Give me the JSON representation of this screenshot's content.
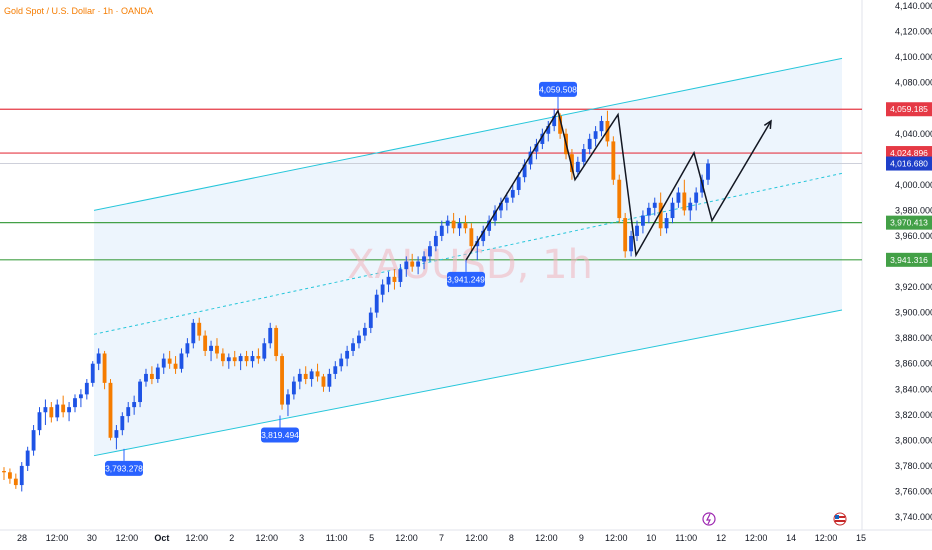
{
  "header": {
    "symbol_title": "Gold Spot / U.S. Dollar · 1h · OANDA",
    "watermark": "XAUUSD, 1h"
  },
  "colors": {
    "bull": "#1e53e5",
    "bear": "#f57c00",
    "channel": "#26c6da",
    "resistance": "#e53945",
    "support": "#43a047",
    "current": "#1e3fc9",
    "callout": "#2962ff",
    "channel_fill": "#e9f2fd"
  },
  "chart_data": {
    "type": "candlestick",
    "symbol": "XAUUSD",
    "timeframe": "1h",
    "broker": "OANDA",
    "ylim": [
      3740,
      4140
    ],
    "y_ticks": [
      3740,
      3760,
      3780,
      3800,
      3820,
      3840,
      3860,
      3880,
      3900,
      3920,
      3940,
      3960,
      3980,
      4000,
      4020,
      4040,
      4060,
      4080,
      4100,
      4120,
      4140
    ],
    "y_tick_labels": [
      "3,740.000",
      "3,760.000",
      "3,780.000",
      "3,800.000",
      "3,820.000",
      "3,840.000",
      "3,860.000",
      "3,880.000",
      "3,900.000",
      "3,920.000",
      "3,940.000",
      "3,960.000",
      "3,980.000",
      "4,000.000",
      "4,020.000",
      "4,040.000",
      "4,060.000",
      "4,080.000",
      "4,100.000",
      "4,120.000",
      "4,140.000"
    ],
    "x_ticks": [
      "28",
      "12:00",
      "30",
      "12:00",
      "Oct",
      "12:00",
      "2",
      "12:00",
      "3",
      "11:00",
      "5",
      "12:00",
      "7",
      "12:00",
      "8",
      "12:00",
      "9",
      "12:00",
      "10",
      "11:00",
      "12",
      "12:00",
      "14",
      "12:00",
      "15"
    ],
    "highlight_x_tick": "Oct",
    "price_levels": [
      {
        "label": "4,059.185",
        "value": 4059.185,
        "kind": "resistance"
      },
      {
        "label": "4,024.896",
        "value": 4024.896,
        "kind": "resistance"
      },
      {
        "label": "4,016.680",
        "value": 4016.68,
        "kind": "current"
      },
      {
        "label": "3,970.413",
        "value": 3970.413,
        "kind": "support"
      },
      {
        "label": "3,941.316",
        "value": 3941.316,
        "kind": "support"
      }
    ],
    "callouts": [
      {
        "label": "3,793.278",
        "value": 3793.278
      },
      {
        "label": "3,819.494",
        "value": 3819.494
      },
      {
        "label": "3,941.249",
        "value": 3941.249
      },
      {
        "label": "4,059.508",
        "value": 4059.508
      }
    ],
    "candles_ohlc": [
      [
        3776,
        3779,
        3769,
        3775
      ],
      [
        3775,
        3778,
        3766,
        3770
      ],
      [
        3770,
        3774,
        3762,
        3765
      ],
      [
        3765,
        3783,
        3760,
        3780
      ],
      [
        3780,
        3795,
        3776,
        3792
      ],
      [
        3792,
        3812,
        3788,
        3808
      ],
      [
        3808,
        3826,
        3804,
        3822
      ],
      [
        3822,
        3832,
        3812,
        3826
      ],
      [
        3826,
        3830,
        3814,
        3818
      ],
      [
        3818,
        3832,
        3815,
        3828
      ],
      [
        3828,
        3835,
        3818,
        3822
      ],
      [
        3822,
        3830,
        3815,
        3826
      ],
      [
        3826,
        3836,
        3822,
        3833
      ],
      [
        3833,
        3840,
        3826,
        3836
      ],
      [
        3836,
        3848,
        3832,
        3845
      ],
      [
        3845,
        3862,
        3842,
        3860
      ],
      [
        3860,
        3872,
        3855,
        3868
      ],
      [
        3868,
        3870,
        3840,
        3845
      ],
      [
        3845,
        3848,
        3800,
        3802
      ],
      [
        3802,
        3812,
        3793,
        3808
      ],
      [
        3808,
        3822,
        3804,
        3819
      ],
      [
        3819,
        3830,
        3814,
        3826
      ],
      [
        3826,
        3835,
        3820,
        3830
      ],
      [
        3830,
        3848,
        3826,
        3846
      ],
      [
        3846,
        3856,
        3842,
        3852
      ],
      [
        3852,
        3858,
        3844,
        3848
      ],
      [
        3848,
        3860,
        3845,
        3857
      ],
      [
        3857,
        3868,
        3852,
        3864
      ],
      [
        3864,
        3870,
        3856,
        3860
      ],
      [
        3860,
        3866,
        3852,
        3856
      ],
      [
        3856,
        3872,
        3853,
        3868
      ],
      [
        3868,
        3880,
        3865,
        3876
      ],
      [
        3876,
        3895,
        3872,
        3892
      ],
      [
        3892,
        3896,
        3878,
        3882
      ],
      [
        3882,
        3886,
        3866,
        3870
      ],
      [
        3870,
        3878,
        3862,
        3874
      ],
      [
        3874,
        3880,
        3864,
        3868
      ],
      [
        3868,
        3872,
        3858,
        3862
      ],
      [
        3862,
        3868,
        3856,
        3865
      ],
      [
        3865,
        3870,
        3858,
        3862
      ],
      [
        3862,
        3868,
        3855,
        3866
      ],
      [
        3866,
        3870,
        3858,
        3862
      ],
      [
        3862,
        3870,
        3857,
        3866
      ],
      [
        3866,
        3872,
        3860,
        3864
      ],
      [
        3864,
        3880,
        3862,
        3876
      ],
      [
        3876,
        3892,
        3872,
        3888
      ],
      [
        3888,
        3890,
        3862,
        3866
      ],
      [
        3866,
        3868,
        3824,
        3828
      ],
      [
        3828,
        3840,
        3819,
        3836
      ],
      [
        3836,
        3850,
        3832,
        3846
      ],
      [
        3846,
        3856,
        3840,
        3852
      ],
      [
        3852,
        3858,
        3844,
        3848
      ],
      [
        3848,
        3856,
        3842,
        3854
      ],
      [
        3854,
        3860,
        3846,
        3850
      ],
      [
        3850,
        3852,
        3838,
        3842
      ],
      [
        3842,
        3856,
        3838,
        3852
      ],
      [
        3852,
        3862,
        3848,
        3858
      ],
      [
        3858,
        3868,
        3854,
        3864
      ],
      [
        3864,
        3874,
        3858,
        3870
      ],
      [
        3870,
        3880,
        3866,
        3876
      ],
      [
        3876,
        3886,
        3872,
        3882
      ],
      [
        3882,
        3892,
        3878,
        3888
      ],
      [
        3888,
        3904,
        3884,
        3900
      ],
      [
        3900,
        3918,
        3896,
        3914
      ],
      [
        3914,
        3926,
        3908,
        3922
      ],
      [
        3922,
        3932,
        3916,
        3928
      ],
      [
        3928,
        3934,
        3918,
        3924
      ],
      [
        3924,
        3938,
        3920,
        3934
      ],
      [
        3934,
        3944,
        3928,
        3940
      ],
      [
        3940,
        3946,
        3932,
        3936
      ],
      [
        3936,
        3944,
        3930,
        3940
      ],
      [
        3940,
        3948,
        3934,
        3944
      ],
      [
        3944,
        3956,
        3940,
        3952
      ],
      [
        3952,
        3964,
        3948,
        3960
      ],
      [
        3960,
        3972,
        3956,
        3968
      ],
      [
        3968,
        3976,
        3962,
        3972
      ],
      [
        3972,
        3978,
        3962,
        3966
      ],
      [
        3966,
        3974,
        3960,
        3970
      ],
      [
        3970,
        3976,
        3962,
        3966
      ],
      [
        3966,
        3970,
        3948,
        3952
      ],
      [
        3952,
        3960,
        3941,
        3956
      ],
      [
        3956,
        3968,
        3952,
        3964
      ],
      [
        3964,
        3976,
        3960,
        3972
      ],
      [
        3972,
        3984,
        3968,
        3980
      ],
      [
        3980,
        3990,
        3974,
        3986
      ],
      [
        3986,
        3994,
        3980,
        3990
      ],
      [
        3990,
        4000,
        3986,
        3996
      ],
      [
        3996,
        4010,
        3992,
        4006
      ],
      [
        4006,
        4020,
        4002,
        4016
      ],
      [
        4016,
        4030,
        4012,
        4026
      ],
      [
        4026,
        4036,
        4020,
        4032
      ],
      [
        4032,
        4044,
        4028,
        4040
      ],
      [
        4040,
        4050,
        4034,
        4046
      ],
      [
        4046,
        4059.5,
        4042,
        4054
      ],
      [
        4054,
        4056,
        4036,
        4040
      ],
      [
        4040,
        4044,
        4020,
        4024
      ],
      [
        4024,
        4028,
        4004,
        4010
      ],
      [
        4010,
        4022,
        4006,
        4018
      ],
      [
        4018,
        4032,
        4014,
        4028
      ],
      [
        4028,
        4040,
        4024,
        4036
      ],
      [
        4036,
        4046,
        4030,
        4042
      ],
      [
        4042,
        4054,
        4038,
        4050
      ],
      [
        4050,
        4058,
        4030,
        4034
      ],
      [
        4034,
        4038,
        4000,
        4004
      ],
      [
        4004,
        4008,
        3970,
        3974
      ],
      [
        3974,
        3978,
        3943,
        3948
      ],
      [
        3948,
        3964,
        3944,
        3960
      ],
      [
        3960,
        3972,
        3956,
        3968
      ],
      [
        3968,
        3980,
        3962,
        3976
      ],
      [
        3976,
        3986,
        3970,
        3982
      ],
      [
        3982,
        3990,
        3976,
        3986
      ],
      [
        3986,
        3994,
        3960,
        3966
      ],
      [
        3966,
        3978,
        3962,
        3974
      ],
      [
        3974,
        3990,
        3970,
        3986
      ],
      [
        3986,
        3998,
        3982,
        3994
      ],
      [
        3994,
        4004,
        3976,
        3980
      ],
      [
        3980,
        3990,
        3972,
        3986
      ],
      [
        3986,
        3998,
        3980,
        3994
      ],
      [
        3994,
        4008,
        3990,
        4004
      ],
      [
        4004,
        4020,
        4000,
        4016.68
      ]
    ],
    "channel": {
      "upper": [
        [
          94,
          3980
        ],
        [
          842,
          4099
        ]
      ],
      "lower": [
        [
          94,
          3788
        ],
        [
          842,
          3902
        ]
      ],
      "mid": [
        [
          94,
          3883
        ],
        [
          842,
          4009
        ]
      ]
    },
    "zigzag": [
      [
        466,
        3941
      ],
      [
        558,
        4058
      ],
      [
        575,
        4004
      ],
      [
        618,
        4055
      ],
      [
        636,
        3945
      ],
      [
        694,
        4025
      ],
      [
        712,
        3972
      ],
      [
        771,
        4050
      ]
    ]
  }
}
